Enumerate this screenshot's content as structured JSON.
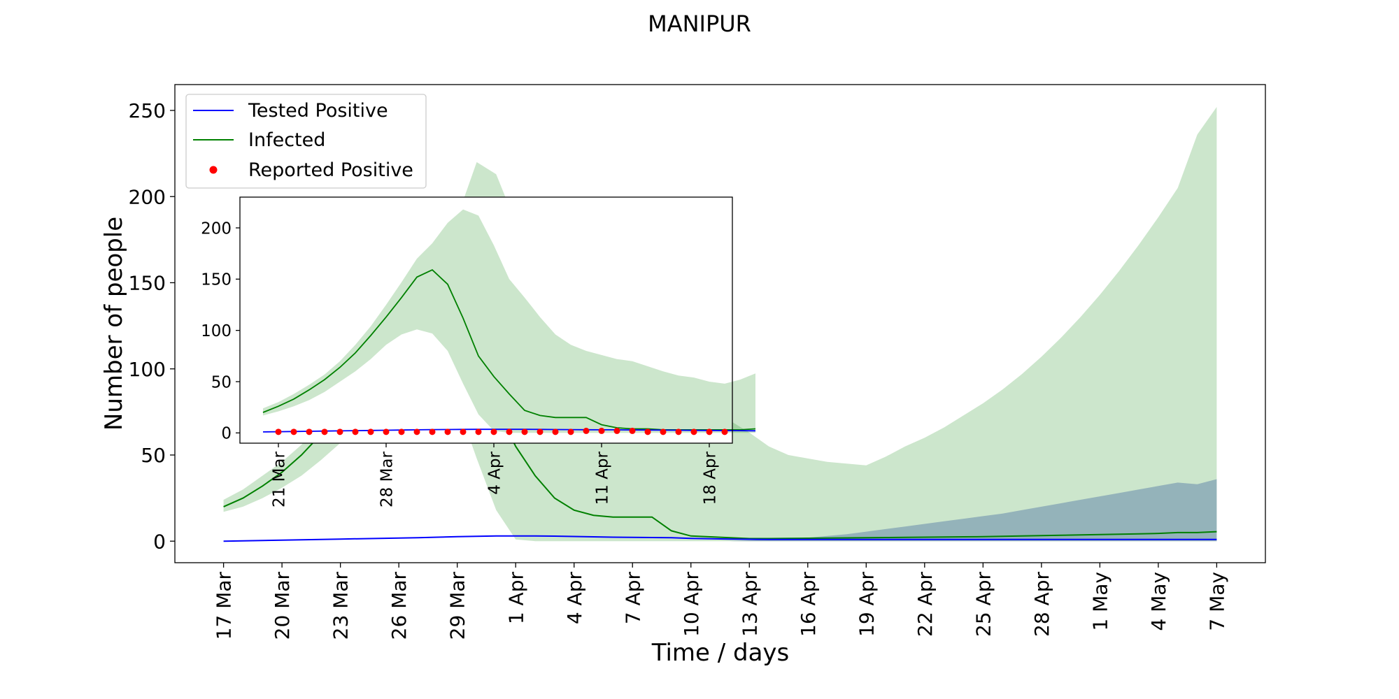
{
  "chart_data": [
    {
      "id": "main",
      "type": "line",
      "title": "MANIPUR",
      "xlabel": "Time / days",
      "ylabel": "Number of people",
      "x_start": "17 Mar",
      "x_days": 51,
      "xlim": [
        -2.5,
        53.5
      ],
      "ylim": [
        -12.5,
        265
      ],
      "yticks": [
        0,
        50,
        100,
        150,
        200,
        250
      ],
      "xticks": [
        {
          "day": 0,
          "label": "17 Mar"
        },
        {
          "day": 3,
          "label": "20 Mar"
        },
        {
          "day": 6,
          "label": "23 Mar"
        },
        {
          "day": 9,
          "label": "26 Mar"
        },
        {
          "day": 12,
          "label": "29 Mar"
        },
        {
          "day": 15,
          "label": "1 Apr"
        },
        {
          "day": 18,
          "label": "4 Apr"
        },
        {
          "day": 21,
          "label": "7 Apr"
        },
        {
          "day": 24,
          "label": "10 Apr"
        },
        {
          "day": 27,
          "label": "13 Apr"
        },
        {
          "day": 30,
          "label": "16 Apr"
        },
        {
          "day": 33,
          "label": "19 Apr"
        },
        {
          "day": 36,
          "label": "22 Apr"
        },
        {
          "day": 39,
          "label": "25 Apr"
        },
        {
          "day": 42,
          "label": "28 Apr"
        },
        {
          "day": 45,
          "label": "1 May"
        },
        {
          "day": 48,
          "label": "4 May"
        },
        {
          "day": 51,
          "label": "7 May"
        }
      ],
      "legend": {
        "position": "upper-left",
        "entries": [
          {
            "label": "Tested Positive",
            "color": "#0000ff",
            "marker": "line"
          },
          {
            "label": "Infected",
            "color": "#008000",
            "marker": "line"
          },
          {
            "label": "Reported Positive",
            "color": "#ff0000",
            "marker": "dot"
          }
        ]
      },
      "series": [
        {
          "name": "Infected",
          "color": "#008000",
          "band_color": "#008000",
          "band_opacity": 0.2,
          "x": [
            0,
            1,
            2,
            3,
            4,
            5,
            6,
            7,
            8,
            9,
            10,
            11,
            12,
            13,
            14,
            15,
            16,
            17,
            18,
            19,
            20,
            21,
            22,
            23,
            24,
            25,
            26,
            27,
            28,
            29,
            30,
            31,
            32,
            33,
            34,
            35,
            36,
            37,
            38,
            39,
            40,
            41,
            42,
            43,
            44,
            45,
            46,
            47,
            48,
            49,
            50,
            51
          ],
          "values": [
            20,
            25,
            32,
            40,
            50,
            62,
            76,
            92,
            108,
            125,
            143,
            155,
            140,
            110,
            78,
            55,
            38,
            25,
            18,
            15,
            14,
            14,
            14,
            6,
            3,
            2.5,
            2,
            1.5,
            1.5,
            1.6,
            1.7,
            1.8,
            1.9,
            2,
            2.1,
            2.2,
            2.3,
            2.4,
            2.5,
            2.6,
            2.8,
            3,
            3.2,
            3.4,
            3.6,
            3.8,
            4,
            4.2,
            4.5,
            5,
            5,
            5.5
          ],
          "lower": [
            17,
            20,
            25,
            31,
            38,
            47,
            57,
            69,
            81,
            93,
            100,
            97,
            80,
            48,
            18,
            1,
            0,
            0,
            0,
            0,
            0,
            0,
            0,
            0,
            0,
            0,
            0,
            0,
            0,
            0,
            0,
            0,
            0,
            0,
            0,
            0,
            0,
            0,
            0,
            0,
            0,
            0,
            0,
            0,
            0,
            0,
            0,
            0,
            0,
            0,
            0,
            0
          ],
          "upper": [
            24,
            30,
            38,
            46,
            56,
            68,
            83,
            100,
            120,
            140,
            160,
            178,
            188,
            220,
            213,
            185,
            160,
            140,
            118,
            110,
            102,
            96,
            92,
            90,
            86,
            80,
            70,
            63,
            55,
            50,
            48,
            46,
            45,
            44,
            49,
            55,
            60,
            66,
            73,
            80,
            88,
            97,
            107,
            118,
            130,
            143,
            157,
            172,
            188,
            205,
            236,
            252
          ]
        },
        {
          "name": "Tested Positive",
          "color": "#0000ff",
          "band_color": "#5b7fa8",
          "band_opacity": 0.5,
          "x": [
            0,
            1,
            2,
            3,
            4,
            5,
            6,
            7,
            8,
            9,
            10,
            11,
            12,
            13,
            14,
            15,
            16,
            17,
            18,
            19,
            20,
            21,
            22,
            23,
            24,
            25,
            26,
            27,
            28,
            29,
            30,
            31,
            32,
            33,
            34,
            35,
            36,
            37,
            38,
            39,
            40,
            41,
            42,
            43,
            44,
            45,
            46,
            47,
            48,
            49,
            50,
            51
          ],
          "values": [
            0,
            0.2,
            0.4,
            0.6,
            0.8,
            1,
            1.2,
            1.4,
            1.6,
            1.8,
            2,
            2.3,
            2.6,
            2.8,
            3,
            3,
            3,
            2.9,
            2.7,
            2.5,
            2.3,
            2.2,
            2.1,
            2,
            1.6,
            1.4,
            1.2,
            1.1,
            1,
            1,
            1,
            1,
            1,
            1,
            1,
            1,
            1,
            1,
            1,
            1,
            1,
            1,
            1,
            1,
            1,
            1,
            1,
            1,
            1,
            1,
            1,
            1
          ],
          "lower": [
            0,
            0,
            0,
            0,
            0,
            0,
            0,
            0,
            0,
            0,
            0,
            0,
            0,
            0,
            0,
            0,
            0,
            0,
            0,
            0,
            0,
            0,
            0,
            0,
            0,
            0,
            0,
            0,
            0,
            0,
            0,
            0,
            0,
            0,
            0,
            0,
            0,
            0,
            0,
            0,
            0,
            0,
            0,
            0,
            0,
            0,
            0,
            0,
            0,
            0,
            0,
            0
          ],
          "upper": [
            0,
            0,
            0,
            0,
            0,
            0,
            0,
            0,
            0,
            0,
            0,
            0,
            0,
            0,
            0,
            0,
            0,
            0,
            0,
            0,
            0,
            0,
            0,
            0,
            0,
            0,
            0,
            0.5,
            1,
            1.5,
            2,
            3,
            4,
            5.5,
            7,
            8.5,
            10,
            11.5,
            13,
            14.5,
            16,
            18,
            20,
            22,
            24,
            26,
            28,
            30,
            32,
            34,
            33,
            36
          ]
        }
      ]
    },
    {
      "id": "inset",
      "type": "line",
      "x_start": "20 Mar",
      "xlim": [
        -1.5,
        30.5
      ],
      "ylim": [
        -10,
        230
      ],
      "yticks": [
        0,
        50,
        100,
        150,
        200
      ],
      "xticks": [
        {
          "day": 1,
          "label": "21 Mar"
        },
        {
          "day": 8,
          "label": "28 Mar"
        },
        {
          "day": 15,
          "label": "4 Apr"
        },
        {
          "day": 22,
          "label": "11 Apr"
        },
        {
          "day": 29,
          "label": "18 Apr"
        }
      ],
      "series": [
        {
          "name": "Infected",
          "color": "#008000",
          "band_color": "#008000",
          "band_opacity": 0.2,
          "x": [
            0,
            1,
            2,
            3,
            4,
            5,
            6,
            7,
            8,
            9,
            10,
            11,
            12,
            13,
            14,
            15,
            16,
            17,
            18,
            19,
            20,
            21,
            22,
            23,
            24,
            25,
            26,
            27,
            28,
            29,
            30,
            31,
            32
          ],
          "values": [
            20,
            26,
            33,
            42,
            52,
            64,
            78,
            95,
            113,
            132,
            152,
            159,
            145,
            112,
            75,
            55,
            38,
            22,
            17,
            15,
            15,
            15,
            8,
            5,
            4,
            4,
            3,
            3,
            3,
            3,
            3,
            3,
            4
          ],
          "lower": [
            17,
            21,
            26,
            32,
            40,
            50,
            60,
            72,
            86,
            96,
            101,
            97,
            80,
            48,
            18,
            2,
            0,
            0,
            0,
            0,
            0,
            0,
            0,
            0,
            0,
            0,
            0,
            0,
            0,
            0,
            0,
            0,
            0
          ],
          "upper": [
            24,
            30,
            38,
            47,
            57,
            70,
            86,
            104,
            125,
            147,
            170,
            185,
            205,
            218,
            212,
            183,
            150,
            132,
            113,
            96,
            86,
            80,
            76,
            72,
            70,
            65,
            60,
            56,
            54,
            50,
            48,
            52,
            58
          ]
        },
        {
          "name": "Tested Positive",
          "color": "#0000ff",
          "x": [
            0,
            1,
            2,
            3,
            4,
            5,
            6,
            7,
            8,
            9,
            10,
            11,
            12,
            13,
            14,
            15,
            16,
            17,
            18,
            19,
            20,
            21,
            22,
            23,
            24,
            25,
            26,
            27,
            28,
            29,
            30,
            31,
            32
          ],
          "values": [
            1,
            1.2,
            1.4,
            1.6,
            1.8,
            2,
            2.2,
            2.4,
            2.6,
            2.8,
            3,
            3.2,
            3.3,
            3.4,
            3.5,
            3.5,
            3.5,
            3.5,
            3.4,
            3.3,
            3.2,
            3.1,
            3,
            3,
            2.9,
            2.8,
            2.7,
            2.6,
            2.5,
            2.4,
            2.3,
            2.2,
            2.1
          ]
        },
        {
          "name": "Reported Positive",
          "type": "scatter",
          "color": "#ff0000",
          "x": [
            1,
            2,
            3,
            4,
            5,
            6,
            7,
            8,
            9,
            10,
            11,
            12,
            13,
            14,
            15,
            16,
            17,
            18,
            19,
            20,
            21,
            22,
            23,
            24,
            25,
            26,
            27,
            28,
            29,
            30
          ],
          "values": [
            1,
            1,
            1,
            1,
            1,
            1,
            1,
            1,
            1,
            1,
            1,
            1,
            1,
            1,
            1,
            1,
            1,
            1,
            1,
            1,
            2,
            2,
            2,
            2,
            1,
            1,
            1,
            1,
            1,
            1
          ]
        }
      ]
    }
  ]
}
